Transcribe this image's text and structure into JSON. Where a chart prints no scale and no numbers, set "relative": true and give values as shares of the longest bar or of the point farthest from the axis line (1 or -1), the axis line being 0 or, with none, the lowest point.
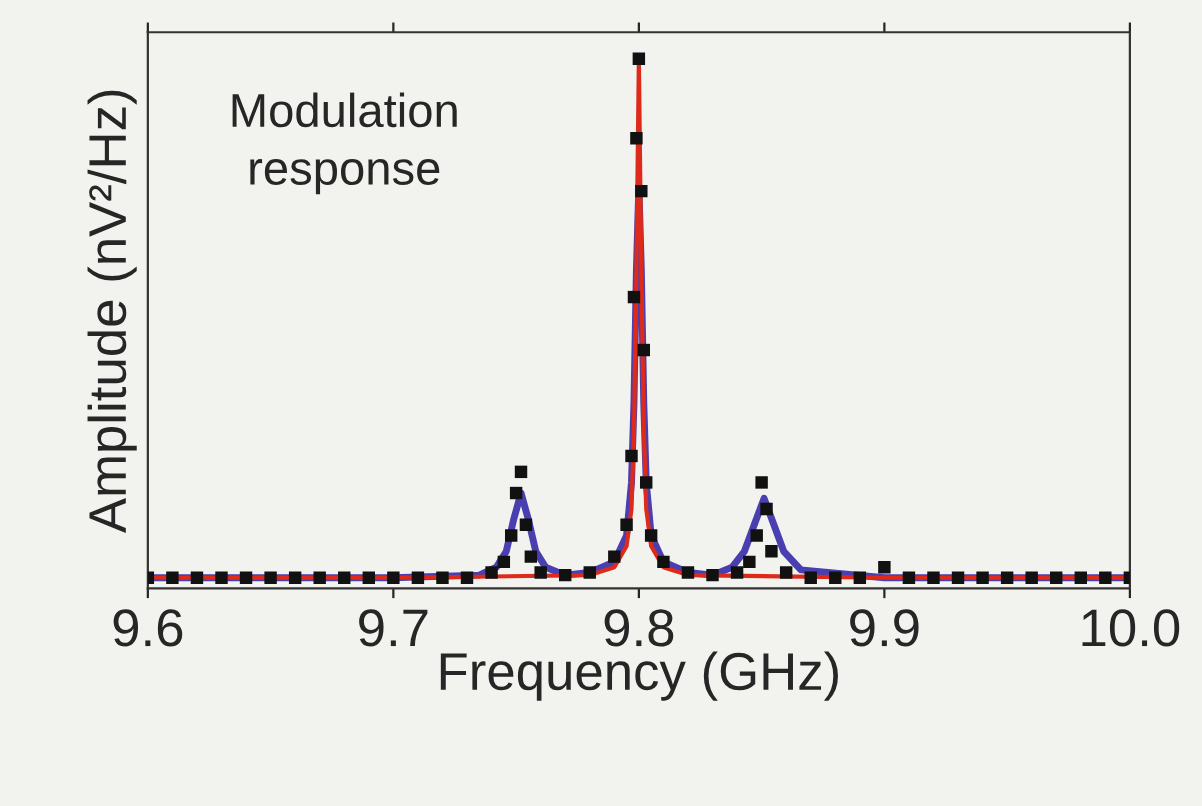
{
  "chart_data": {
    "type": "line",
    "relative": true,
    "xlabel": "Frequency (GHz)",
    "ylabel": "Amplitude (nV²/Hz)",
    "xlim": [
      9.6,
      10.0
    ],
    "xticks": [
      9.6,
      9.7,
      9.8,
      9.9,
      {
        "value": 10.0,
        "label": "10.0"
      }
    ],
    "annotations": [
      "Modulation\nresponse"
    ],
    "series": [
      {
        "type": "scatter",
        "color": "#111111",
        "marker": "square",
        "x": [
          9.6,
          9.61,
          9.62,
          9.63,
          9.64,
          9.65,
          9.66,
          9.67,
          9.68,
          9.69,
          9.7,
          9.71,
          9.72,
          9.73,
          9.74,
          9.745,
          9.748,
          9.75,
          9.752,
          9.754,
          9.756,
          9.76,
          9.77,
          9.78,
          9.79,
          9.795,
          9.797,
          9.798,
          9.799,
          9.8,
          9.801,
          9.802,
          9.803,
          9.805,
          9.81,
          9.82,
          9.83,
          9.84,
          9.845,
          9.848,
          9.85,
          9.852,
          9.854,
          9.86,
          9.87,
          9.88,
          9.89,
          9.9,
          9.91,
          9.92,
          9.93,
          9.94,
          9.95,
          9.96,
          9.97,
          9.98,
          9.99,
          10.0
        ],
        "values": [
          0.02,
          0.02,
          0.02,
          0.02,
          0.02,
          0.02,
          0.02,
          0.02,
          0.02,
          0.02,
          0.02,
          0.02,
          0.02,
          0.02,
          0.03,
          0.05,
          0.1,
          0.18,
          0.22,
          0.12,
          0.06,
          0.03,
          0.025,
          0.03,
          0.06,
          0.12,
          0.25,
          0.55,
          0.85,
          1.0,
          0.75,
          0.45,
          0.2,
          0.1,
          0.05,
          0.03,
          0.025,
          0.03,
          0.05,
          0.1,
          0.2,
          0.15,
          0.07,
          0.03,
          0.02,
          0.02,
          0.02,
          0.04,
          0.02,
          0.02,
          0.02,
          0.02,
          0.02,
          0.02,
          0.02,
          0.02,
          0.02,
          0.02
        ]
      },
      {
        "color": "#dd2a1a",
        "x": [
          9.6,
          9.7,
          9.78,
          9.79,
          9.795,
          9.797,
          9.798,
          9.799,
          9.8,
          9.801,
          9.802,
          9.803,
          9.805,
          9.81,
          9.82,
          9.9,
          10.0
        ],
        "values": [
          0.02,
          0.02,
          0.025,
          0.04,
          0.08,
          0.15,
          0.3,
          0.6,
          1.0,
          0.6,
          0.3,
          0.15,
          0.08,
          0.04,
          0.025,
          0.02,
          0.02
        ]
      },
      {
        "color": "#4a3fb0",
        "x": [
          9.6,
          9.7,
          9.735,
          9.742,
          9.746,
          9.749,
          9.752,
          9.755,
          9.758,
          9.762,
          9.77,
          9.78,
          9.79,
          9.795,
          9.797,
          9.798,
          9.799,
          9.8,
          9.801,
          9.802,
          9.803,
          9.805,
          9.81,
          9.82,
          9.83,
          9.838,
          9.843,
          9.847,
          9.851,
          9.855,
          9.859,
          9.866,
          9.9,
          10.0
        ],
        "values": [
          0.02,
          0.02,
          0.025,
          0.04,
          0.07,
          0.13,
          0.18,
          0.13,
          0.07,
          0.04,
          0.025,
          0.03,
          0.05,
          0.1,
          0.2,
          0.35,
          0.6,
          0.76,
          0.6,
          0.35,
          0.2,
          0.1,
          0.05,
          0.03,
          0.025,
          0.04,
          0.07,
          0.12,
          0.17,
          0.12,
          0.07,
          0.035,
          0.02,
          0.02
        ]
      }
    ]
  }
}
